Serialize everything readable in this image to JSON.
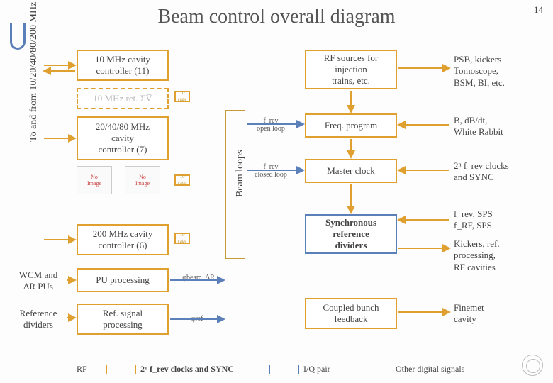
{
  "page": {
    "title": "Beam control overall diagram",
    "number": "14"
  },
  "vlabels": {
    "left": "To and from 10/20/40/80/200 MHz RF cavities",
    "beam": "Beam loops"
  },
  "col1": {
    "b1": "10 MHz cavity\ncontroller (11)",
    "b2": "10 MHz ret. ΣV̅",
    "b3": "20/40/80 MHz\ncavity\ncontroller (7)",
    "b4": "200 MHz cavity\ncontroller (6)",
    "b5": "PU processing",
    "b6": "Ref. signal\nprocessing"
  },
  "left_side": {
    "l1": "WCM and\nΔR PUs",
    "l2": "Reference\ndividers"
  },
  "mid_lbl": {
    "m1": "φbeam, ΔR",
    "m2": "φref"
  },
  "frev": {
    "open": "f_rev\nopen loop",
    "closed": "f_rev\nclosed loop"
  },
  "col2": {
    "c1": "RF sources for\ninjection\ntrains, etc.",
    "c2": "Freq. program",
    "c3": "Master clock",
    "c4": "Synchronous\nreference\ndividers",
    "c5": "Coupled bunch\nfeedback"
  },
  "right": {
    "r1": "PSB, kickers\nTomoscope,\nBSM, BI, etc.",
    "r2": "B, dB/dt,\nWhite Rabbit",
    "r3": "2ⁿ f_rev clocks\nand SYNC",
    "r4a": "f_rev, SPS\nf_RF, SPS",
    "r4b": "Kickers, ref.\nprocessing,\nRF cavities",
    "r5": "Finemet\ncavity"
  },
  "legend": {
    "rf": "RF",
    "clk": "2ⁿ f_rev clocks and SYNC",
    "iq": "I/Q pair",
    "oth": "Other digital signals"
  },
  "colors": {
    "yellow": "#e0a030",
    "blue": "#5b7fb8"
  }
}
